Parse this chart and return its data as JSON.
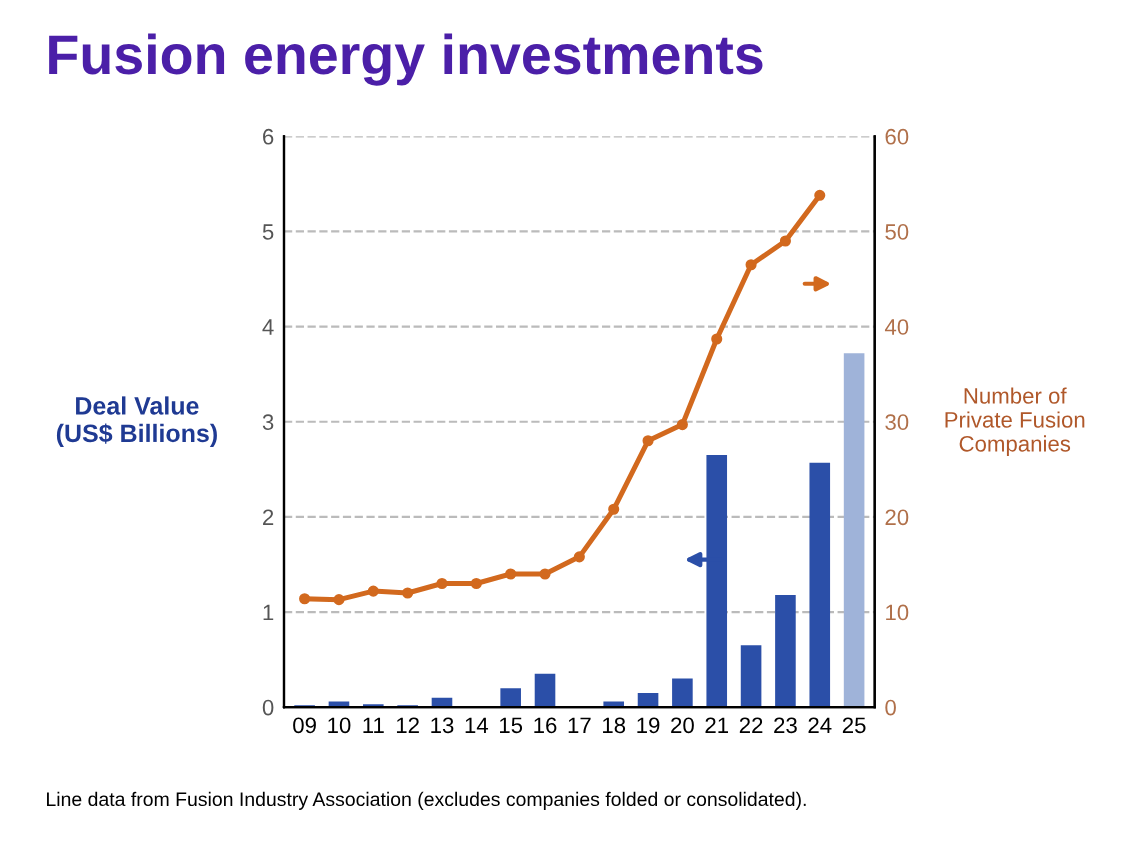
{
  "chart_data": {
    "type": "bar",
    "title": "Fusion energy investments",
    "categories": [
      "09",
      "10",
      "11",
      "12",
      "13",
      "14",
      "15",
      "16",
      "17",
      "18",
      "19",
      "20",
      "21",
      "22",
      "23",
      "24",
      "25"
    ],
    "ylabel": "Deal Value\n(US$ Billions)",
    "y2label": "Number of\nPrivate Fusion\nCompanies",
    "series": [
      {
        "colors": [
          "#2b4fa8",
          "#2b4fa8",
          "#2b4fa8",
          "#2b4fa8",
          "#2b4fa8",
          "#2b4fa8",
          "#2b4fa8",
          "#2b4fa8",
          "#2b4fa8",
          "#2b4fa8",
          "#2b4fa8",
          "#2b4fa8",
          "#2b4fa8",
          "#2b4fa8",
          "#2b4fa8",
          "#2b4fa8",
          "#9fb3d9"
        ],
        "values": [
          0.02,
          0.06,
          0.03,
          0.02,
          0.1,
          0.01,
          0.2,
          0.35,
          0.01,
          0.06,
          0.15,
          0.3,
          2.65,
          0.65,
          1.18,
          2.57,
          3.72
        ]
      },
      {
        "type": "line",
        "axis": "y2",
        "color": "#d2691e",
        "marker": "circle",
        "values": [
          11.4,
          11.3,
          12.2,
          12,
          13,
          13,
          14,
          14,
          15.8,
          20.8,
          28,
          29.7,
          38.7,
          46.5,
          49,
          53.8,
          null
        ]
      }
    ],
    "ylim": [
      0,
      6
    ],
    "yticks": [
      0,
      1,
      2,
      3,
      4,
      5,
      6
    ],
    "y2lim": [
      0,
      60
    ],
    "y2ticks": [
      0,
      10,
      20,
      30,
      40,
      50,
      60
    ],
    "grid": "y",
    "annotations": [
      "Line data from Fusion Industry Association (excludes companies folded or consolidated)."
    ]
  }
}
